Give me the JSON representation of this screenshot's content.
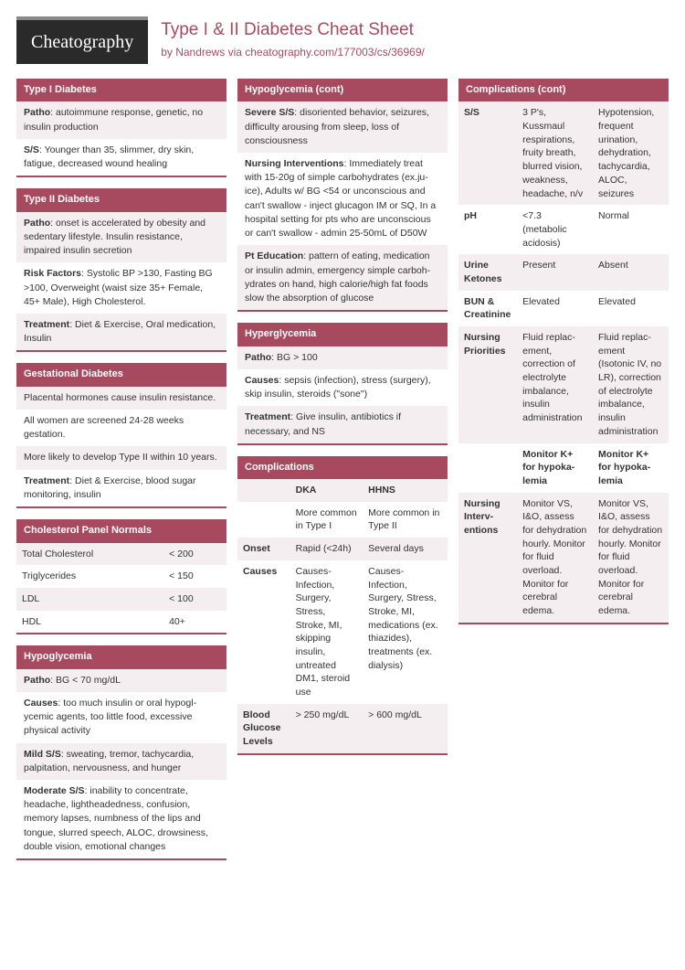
{
  "colors": {
    "accent": "#a84a5f",
    "logo_bg": "#2a2a2a",
    "row_alt": "#f4eef0",
    "row": "#ffffff",
    "text": "#333333"
  },
  "logo": "Cheatography",
  "title": "Type I & II Diabetes Cheat Sheet",
  "by": "by ",
  "author": "Nandrews",
  "via": " via ",
  "url": "cheatography.com/177003/cs/36969/",
  "col1": [
    {
      "title": "Type I Diabetes",
      "rows": [
        {
          "b": "Patho",
          "t": ": autoimmune response, genetic, no insulin production"
        },
        {
          "b": "S/S",
          "t": ": Younger than 35, slimmer, dry skin, fatigue, decreased wound healing"
        }
      ]
    },
    {
      "title": "Type II Diabetes",
      "rows": [
        {
          "b": "Patho",
          "t": ": onset is accelerated by obesity and sedentary lifestyle. Insulin resistance, impaired insulin secretion"
        },
        {
          "b": "Risk Factors",
          "t": ": Systolic BP >130, Fasting BG >100, Overweight (waist size 35+ Female, 45+ Male), High Cholesterol."
        },
        {
          "b": "Treatment",
          "t": ": Diet & Exercise, Oral medica­tion, Insulin"
        }
      ]
    },
    {
      "title": "Gestational Diabetes",
      "rows": [
        {
          "b": "",
          "t": "Placental hormones cause insulin resist­ance."
        },
        {
          "b": "",
          "t": "All women are screened 24-28 weeks gestation."
        },
        {
          "b": "",
          "t": "More likely to develop Type II within 10 years."
        },
        {
          "b": "Treatment",
          "t": ": Diet & Exercise, blood sugar monitoring, insulin"
        }
      ]
    },
    {
      "title": "Cholesterol Panel Normals",
      "type": "table2",
      "trows": [
        [
          "Total Cholesterol",
          "< 200"
        ],
        [
          "Triglycerides",
          "< 150"
        ],
        [
          "LDL",
          "< 100"
        ],
        [
          "HDL",
          "40+"
        ]
      ]
    },
    {
      "title": "Hypoglycemia",
      "rows": [
        {
          "b": "Patho",
          "t": ": BG < 70 mg/dL"
        },
        {
          "b": "Causes",
          "t": ": too much insulin or oral hypogl­ycemic agents, too little food, excessive physical activity"
        },
        {
          "b": "Mild S/S",
          "t": ": sweating, tremor, tachycardia, palpitation, nervousness, and hunger"
        },
        {
          "b": "Moderate S/S",
          "t": ": inability to concentrate, headache, lightheadedness, confusion, memory lapses, numbness of the lips and tongue, slurred speech, ALOC, drowsiness, double vision, emotional changes"
        }
      ]
    }
  ],
  "col2": [
    {
      "title": "Hypoglycemia (cont)",
      "rows": [
        {
          "b": "Severe S/S",
          "t": ": disoriented behavior, seizures, difficulty arousing from sleep, loss of consciousness"
        },
        {
          "b": "Nursing Interventions",
          "t": ": Immediately treat with 15-20g of simple carbohydrates (ex.ju­ice), Adults w/ BG <54 or unconscious and can't swallow - inject glucagon IM or SQ, In a hospital setting for pts who are uncons­cious or can't swallow - admin 25-50mL of D50W"
        },
        {
          "b": "Pt Education",
          "t": ": pattern of eating, medication or insulin admin, emergency simple carboh­ydrates on hand, high calorie/high fat foods slow the absorption of glucose"
        }
      ]
    },
    {
      "title": "Hyperglycemia",
      "rows": [
        {
          "b": "Patho",
          "t": ": BG > 100"
        },
        {
          "b": "Causes",
          "t": ": sepsis (infection), stress (surgery), skip insulin, steroids (\"sone\")"
        },
        {
          "b": "Treatment",
          "t": ": Give insulin, antibiotics if necessary, and NS"
        }
      ]
    },
    {
      "title": "Complications",
      "type": "table3",
      "thead": [
        "",
        "DKA",
        "HHNS"
      ],
      "trows": [
        [
          "",
          "More common in Type I",
          "More common in Type II"
        ],
        [
          "Onset",
          "Rapid (<24h)",
          "Several days"
        ],
        [
          "Causes",
          "Causes- Infection, Surgery, Stress, Stroke, MI, skipping insulin, untreated DM1, steroid use",
          "Causes- Infection, Surgery, Stress, Stroke, MI, medications (ex. thiazides), treatments (ex. dialysis)"
        ],
        [
          "Blood Glucose Levels",
          "> 250 mg/dL",
          "> 600 mg/dL"
        ]
      ]
    }
  ],
  "col3": [
    {
      "title": "Complications (cont)",
      "type": "table3",
      "trows": [
        [
          "S/S",
          "3 P's, Kussmaul respirations, fruity breath, blurred vision, weakness, headache, n/v",
          "Hypotension, frequent urination, dehydration, tachycardia, ALOC, seizures"
        ],
        [
          "pH",
          "<7.3 (metabolic acidosis)",
          "Normal"
        ],
        [
          "Urine Ketones",
          "Present",
          "Absent"
        ],
        [
          "BUN & Creatinine",
          "Elevated",
          "Elevated"
        ],
        [
          "Nursing Priorities",
          "Fluid replac­ement, correction of electrolyte imbalance, insulin administration",
          "Fluid replac­ement (Isotonic IV, no LR), correction of electrolyte imbalance, insulin administration"
        ],
        [
          "",
          "<b>Monitor K+ for hypoka­lemia</b>",
          "<b>Monitor K+ for hypoka­lemia</b>"
        ],
        [
          "Nursing Interv­entions",
          "Monitor VS, I&O, assess for dehydr­ation hourly. Monitor for fluid overload. Monitor for cerebral edema.",
          "Monitor VS, I&O, assess for dehydr­ation hourly. Monitor for fluid overload. Monitor for cerebral edema."
        ]
      ]
    }
  ]
}
